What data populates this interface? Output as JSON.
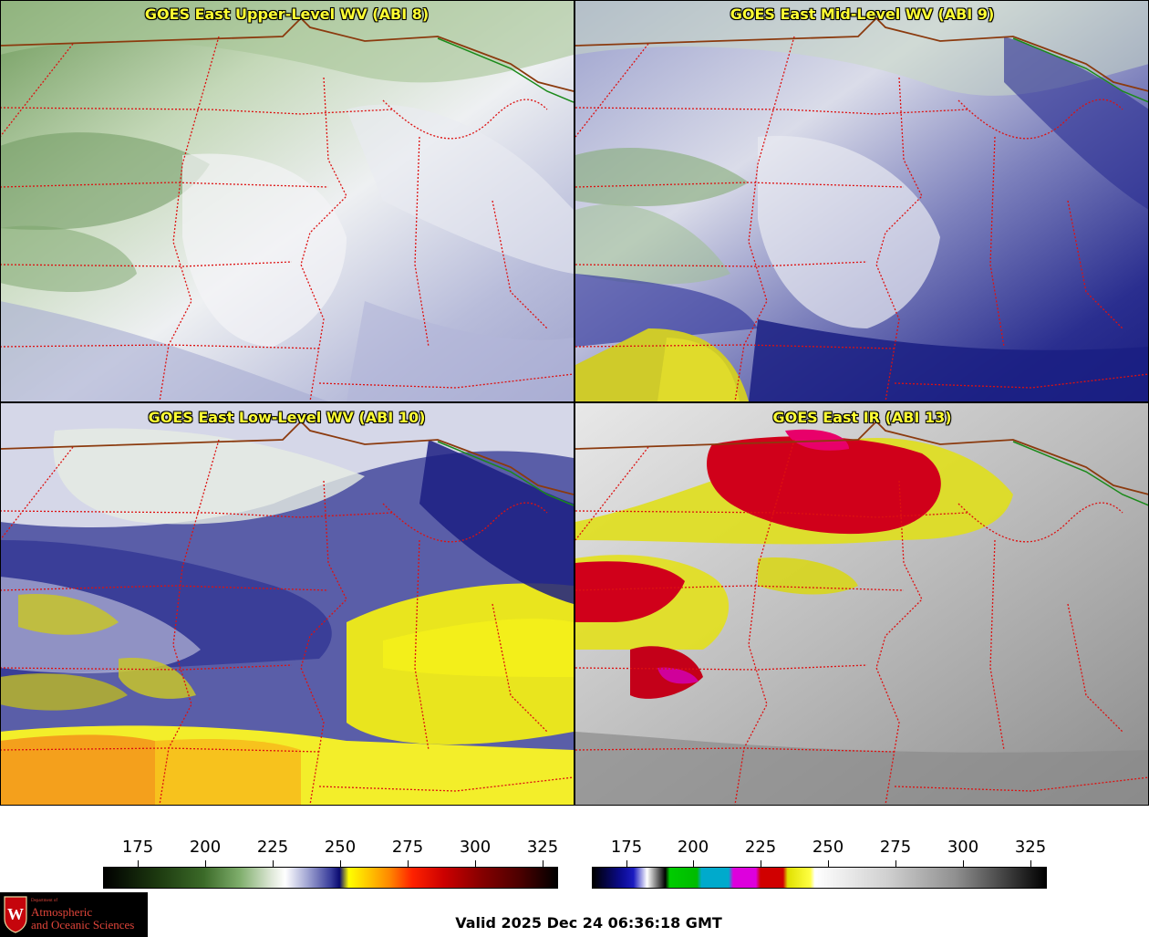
{
  "panels": [
    {
      "title": "GOES East Upper-Level WV (ABI 8)"
    },
    {
      "title": "GOES East Mid-Level WV (ABI 9)"
    },
    {
      "title": "GOES East Low-Level WV (ABI 10)"
    },
    {
      "title": "GOES East IR (ABI 13)"
    }
  ],
  "colorbars": [
    {
      "name": "wv-colorbar",
      "ticks": [
        "175",
        "200",
        "225",
        "250",
        "275",
        "300",
        "325"
      ]
    },
    {
      "name": "ir-colorbar",
      "ticks": [
        "175",
        "200",
        "225",
        "250",
        "275",
        "300",
        "325"
      ]
    }
  ],
  "logo": {
    "department": "Department of",
    "line1": "Atmospheric",
    "line2": "and Oceanic Sciences",
    "shield_letter": "W"
  },
  "valid_time": "Valid 2025 Dec 24 06:36:18 GMT",
  "colors": {
    "title_text": "#ffff33",
    "state_border": "#dd1111",
    "country_border": "#8b3a0e",
    "coast": "#1a8a1a"
  }
}
